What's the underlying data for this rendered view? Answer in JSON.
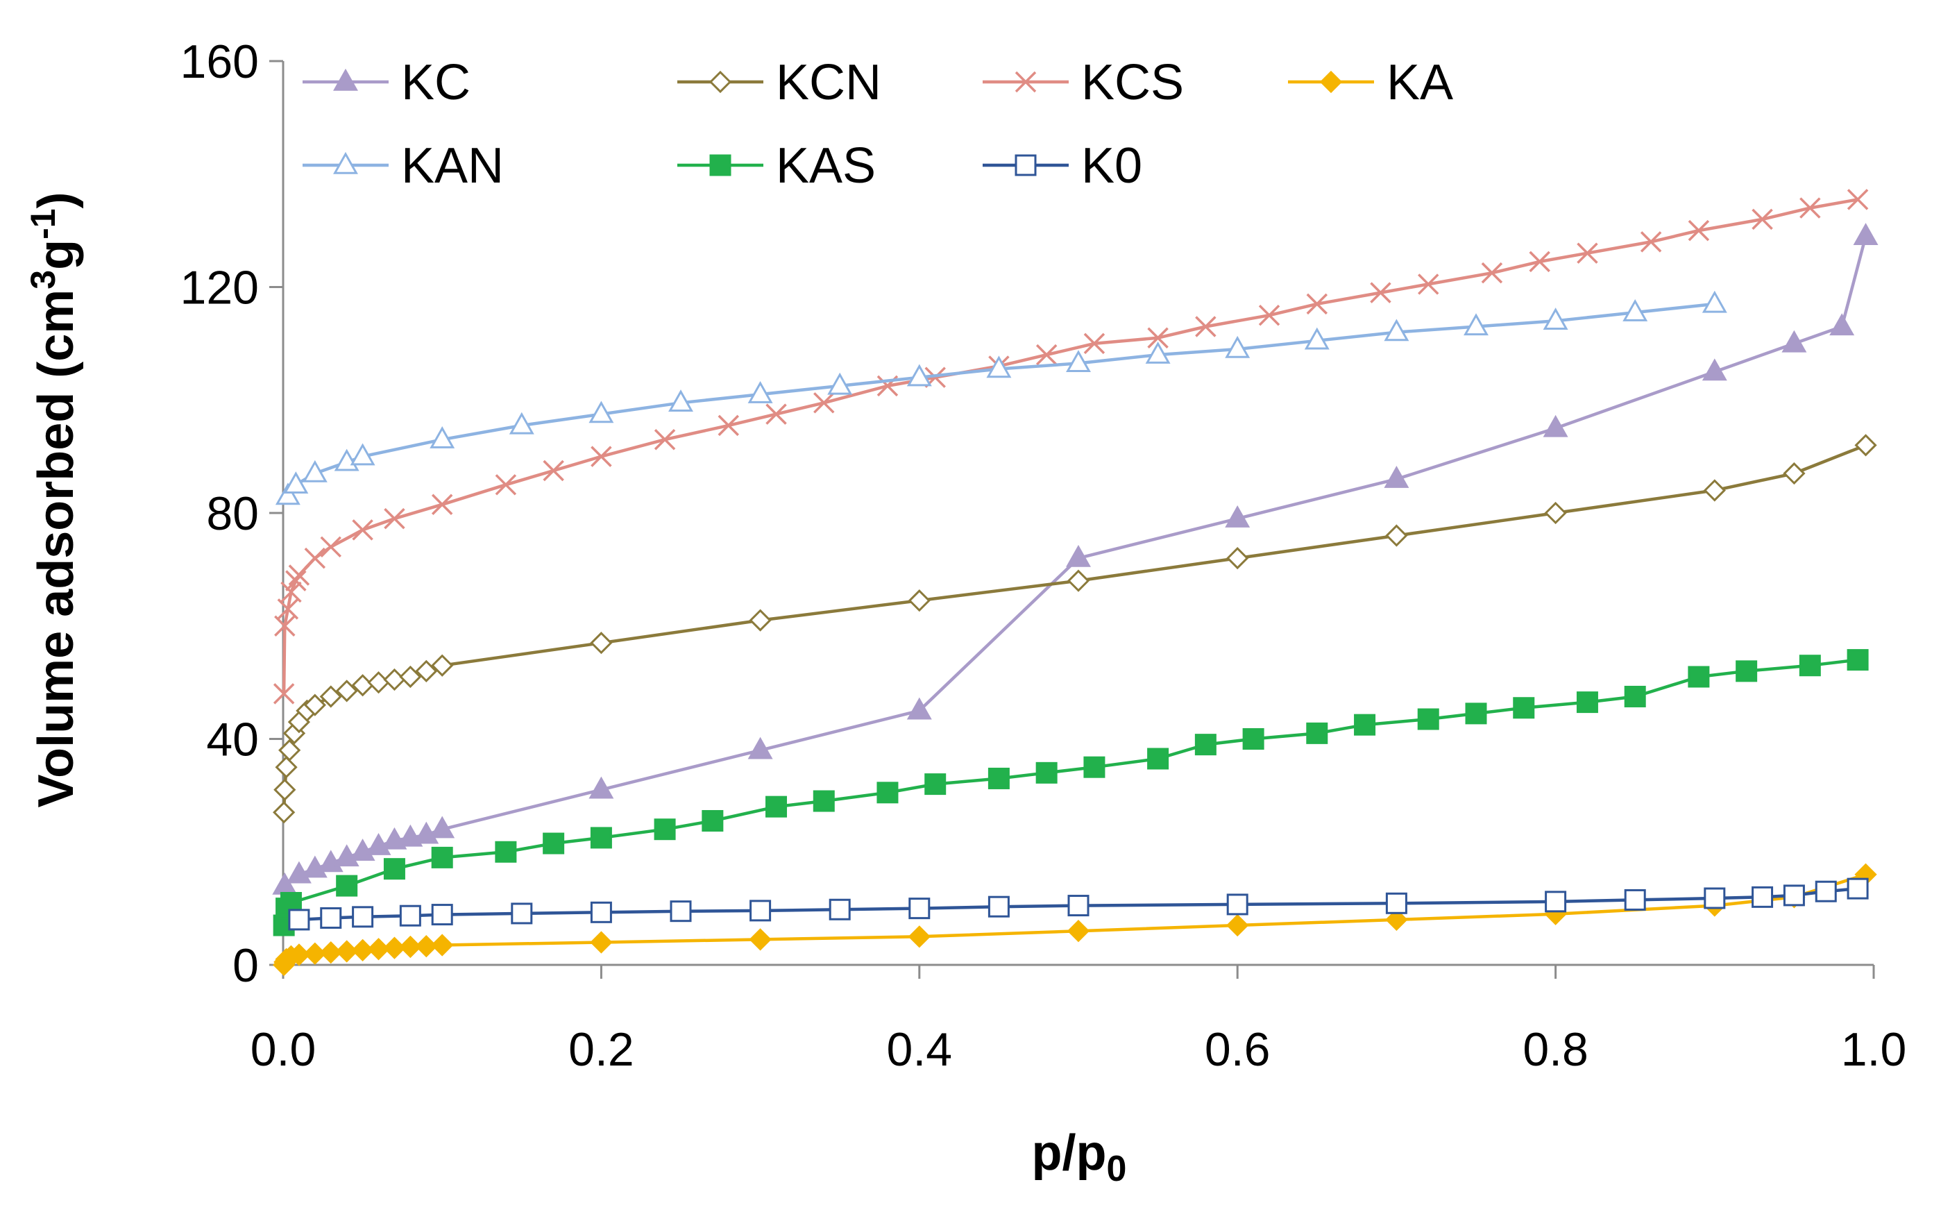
{
  "chart_data": {
    "type": "line",
    "title": "",
    "xlabel": "p/p",
    "xlabel_sub": "0",
    "ylabel_prefix": "Volume adsorbed (cm",
    "ylabel_sup1": "3",
    "ylabel_mid": "g",
    "ylabel_sup2": "-1",
    "ylabel_suffix": ")",
    "xlim": [
      0.0,
      1.0
    ],
    "ylim": [
      0,
      160
    ],
    "xticks": [
      "0.0",
      "0.2",
      "0.4",
      "0.6",
      "0.8",
      "1.0"
    ],
    "yticks": [
      "0",
      "40",
      "80",
      "120",
      "160"
    ],
    "grid": false,
    "legend_position": "top-left",
    "series": [
      {
        "name": "KC",
        "color": "#a99bc9",
        "marker": "triangle-filled",
        "x": [
          0.001,
          0.01,
          0.02,
          0.03,
          0.04,
          0.05,
          0.06,
          0.07,
          0.08,
          0.09,
          0.1,
          0.2,
          0.3,
          0.4,
          0.5,
          0.6,
          0.7,
          0.8,
          0.9,
          0.95,
          0.98,
          0.995
        ],
        "y": [
          14,
          16,
          17,
          18,
          19,
          20,
          21,
          22,
          22.5,
          23,
          24,
          31,
          38,
          45,
          72,
          79,
          86,
          95,
          105,
          110,
          113,
          129
        ]
      },
      {
        "name": "KCN",
        "color": "#8b7a3b",
        "marker": "diamond-open",
        "x": [
          0.0005,
          0.001,
          0.002,
          0.004,
          0.007,
          0.01,
          0.015,
          0.02,
          0.03,
          0.04,
          0.05,
          0.06,
          0.07,
          0.08,
          0.09,
          0.1,
          0.2,
          0.3,
          0.4,
          0.5,
          0.6,
          0.7,
          0.8,
          0.9,
          0.95,
          0.995
        ],
        "y": [
          27,
          31,
          35,
          38,
          41,
          43,
          45,
          46,
          47.5,
          48.5,
          49.5,
          50,
          50.5,
          51,
          52,
          53,
          57,
          61,
          64.5,
          68,
          72,
          76,
          80,
          84,
          87,
          92
        ]
      },
      {
        "name": "KCS",
        "color": "#e08c84",
        "marker": "x",
        "x": [
          0.0005,
          0.001,
          0.003,
          0.005,
          0.008,
          0.01,
          0.02,
          0.03,
          0.05,
          0.07,
          0.1,
          0.14,
          0.17,
          0.2,
          0.24,
          0.28,
          0.31,
          0.34,
          0.38,
          0.41,
          0.45,
          0.48,
          0.51,
          0.55,
          0.58,
          0.62,
          0.65,
          0.69,
          0.72,
          0.76,
          0.79,
          0.82,
          0.86,
          0.89,
          0.93,
          0.96,
          0.99
        ],
        "y": [
          48,
          60,
          63,
          66,
          68,
          69,
          72,
          74,
          77,
          79,
          81.5,
          85,
          87.5,
          90,
          93,
          95.5,
          97.5,
          99.5,
          102.5,
          104,
          106,
          108,
          110,
          111,
          113,
          115,
          117,
          119,
          120.5,
          122.5,
          124.5,
          126,
          128,
          130,
          132,
          134,
          135.5
        ]
      },
      {
        "name": "KA",
        "color": "#f5b400",
        "marker": "diamond-filled",
        "x": [
          0.0005,
          0.001,
          0.002,
          0.005,
          0.01,
          0.02,
          0.03,
          0.04,
          0.05,
          0.06,
          0.07,
          0.08,
          0.09,
          0.1,
          0.2,
          0.3,
          0.4,
          0.5,
          0.6,
          0.7,
          0.8,
          0.9,
          0.95,
          0.995
        ],
        "y": [
          0,
          0.5,
          1,
          1.5,
          1.8,
          2,
          2.2,
          2.4,
          2.6,
          2.8,
          3,
          3.2,
          3.3,
          3.5,
          4,
          4.5,
          5,
          6,
          7,
          8,
          9,
          10.5,
          12,
          16
        ]
      },
      {
        "name": "KAN",
        "color": "#8db3e2",
        "marker": "triangle-open",
        "x": [
          0.003,
          0.008,
          0.02,
          0.04,
          0.05,
          0.1,
          0.15,
          0.2,
          0.25,
          0.3,
          0.35,
          0.4,
          0.45,
          0.5,
          0.55,
          0.6,
          0.65,
          0.7,
          0.75,
          0.8,
          0.85,
          0.9
        ],
        "y": [
          83,
          85,
          87,
          89,
          90,
          93,
          95.5,
          97.5,
          99.5,
          101,
          102.5,
          104,
          105.5,
          106.5,
          108,
          109,
          110.5,
          112,
          113,
          114,
          115.5,
          117
        ]
      },
      {
        "name": "KAS",
        "color": "#22b14c",
        "marker": "square-filled",
        "x": [
          0.0005,
          0.002,
          0.005,
          0.04,
          0.07,
          0.1,
          0.14,
          0.17,
          0.2,
          0.24,
          0.27,
          0.31,
          0.34,
          0.38,
          0.41,
          0.45,
          0.48,
          0.51,
          0.55,
          0.58,
          0.61,
          0.65,
          0.68,
          0.72,
          0.75,
          0.78,
          0.82,
          0.85,
          0.89,
          0.92,
          0.96,
          0.99
        ],
        "y": [
          7,
          10,
          11,
          14,
          17,
          19,
          20,
          21.5,
          22.5,
          24,
          25.5,
          28,
          29,
          30.5,
          32,
          33,
          34,
          35,
          36.5,
          39,
          40,
          41,
          42.5,
          43.5,
          44.5,
          45.5,
          46.5,
          47.5,
          51,
          52,
          53,
          54
        ]
      },
      {
        "name": "K0",
        "color": "#2f5597",
        "marker": "square-open",
        "x": [
          0.01,
          0.03,
          0.05,
          0.08,
          0.1,
          0.15,
          0.2,
          0.25,
          0.3,
          0.35,
          0.4,
          0.45,
          0.5,
          0.6,
          0.7,
          0.8,
          0.85,
          0.9,
          0.93,
          0.95,
          0.97,
          0.99
        ],
        "y": [
          8,
          8.3,
          8.5,
          8.7,
          8.9,
          9.1,
          9.3,
          9.5,
          9.6,
          9.8,
          10,
          10.3,
          10.5,
          10.7,
          10.9,
          11.2,
          11.5,
          11.8,
          12,
          12.3,
          13,
          13.5
        ]
      }
    ]
  }
}
